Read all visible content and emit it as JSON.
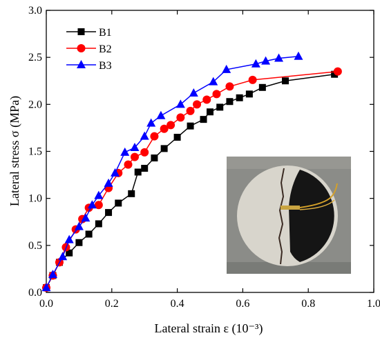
{
  "chart_data": {
    "type": "line",
    "xlabel": "Lateral strain ε (10⁻³)",
    "ylabel": "Lateral stress σ (MPa)",
    "xlim": [
      0.0,
      1.0
    ],
    "ylim": [
      0.0,
      3.0
    ],
    "xticks": [
      "0.0",
      "0.2",
      "0.4",
      "0.6",
      "0.8",
      "1.0"
    ],
    "yticks": [
      "0.0",
      "0.5",
      "1.0",
      "1.5",
      "2.0",
      "2.5",
      "3.0"
    ],
    "grid": false,
    "legend_position": "top-left",
    "inset_image": "photo of cracked cylindrical rock specimen with strain gauge",
    "series": [
      {
        "name": "B1",
        "color": "#000000",
        "marker": "square",
        "x": [
          0.0,
          0.02,
          0.04,
          0.07,
          0.1,
          0.13,
          0.16,
          0.19,
          0.22,
          0.26,
          0.28,
          0.3,
          0.33,
          0.36,
          0.4,
          0.44,
          0.48,
          0.5,
          0.53,
          0.56,
          0.59,
          0.62,
          0.66,
          0.73,
          0.88
        ],
        "y": [
          0.05,
          0.18,
          0.32,
          0.42,
          0.53,
          0.62,
          0.73,
          0.85,
          0.95,
          1.05,
          1.28,
          1.32,
          1.43,
          1.53,
          1.65,
          1.77,
          1.84,
          1.92,
          1.97,
          2.03,
          2.07,
          2.11,
          2.18,
          2.25,
          2.32
        ]
      },
      {
        "name": "B2",
        "color": "#ff0000",
        "marker": "circle",
        "x": [
          0.0,
          0.02,
          0.04,
          0.06,
          0.09,
          0.11,
          0.13,
          0.16,
          0.19,
          0.22,
          0.25,
          0.27,
          0.3,
          0.33,
          0.36,
          0.38,
          0.41,
          0.44,
          0.46,
          0.49,
          0.52,
          0.56,
          0.63,
          0.89
        ],
        "y": [
          0.05,
          0.18,
          0.32,
          0.48,
          0.67,
          0.78,
          0.9,
          0.93,
          1.11,
          1.27,
          1.36,
          1.44,
          1.49,
          1.66,
          1.74,
          1.78,
          1.86,
          1.93,
          2.0,
          2.05,
          2.11,
          2.19,
          2.26,
          2.35
        ]
      },
      {
        "name": "B3",
        "color": "#0000ff",
        "marker": "triangle",
        "x": [
          0.0,
          0.02,
          0.05,
          0.07,
          0.1,
          0.12,
          0.14,
          0.16,
          0.19,
          0.21,
          0.24,
          0.27,
          0.3,
          0.32,
          0.35,
          0.41,
          0.45,
          0.51,
          0.55,
          0.64,
          0.67,
          0.71,
          0.77
        ],
        "y": [
          0.05,
          0.19,
          0.38,
          0.56,
          0.7,
          0.79,
          0.93,
          1.03,
          1.16,
          1.27,
          1.49,
          1.54,
          1.66,
          1.8,
          1.88,
          2.0,
          2.12,
          2.24,
          2.37,
          2.43,
          2.46,
          2.49,
          2.51
        ]
      }
    ]
  }
}
